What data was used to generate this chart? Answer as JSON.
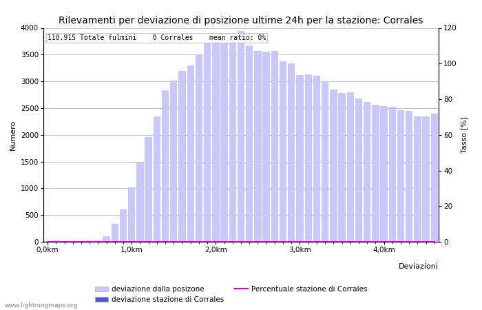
{
  "title": "Rilevamenti per deviazione di posizione ultime 24h per la stazione: Corrales",
  "xlabel": "Deviazioni",
  "ylabel_left": "Numero",
  "ylabel_right": "Tasso [%]",
  "annotation": "110.915 Totale fulmini    0 Corrales    mean ratio: 0%",
  "watermark": "www.lightningmaps.org",
  "bar_values": [
    10,
    20,
    15,
    10,
    15,
    20,
    25,
    100,
    330,
    600,
    1020,
    1480,
    1960,
    2350,
    2840,
    3010,
    3200,
    3300,
    3490,
    3730,
    3730,
    3800,
    3820,
    3940,
    3670,
    3570,
    3560,
    3570,
    3380,
    3340,
    3120,
    3130,
    3100,
    3000,
    2850,
    2780,
    2800,
    2680,
    2610,
    2570,
    2540,
    2520,
    2460,
    2450,
    2350,
    2340,
    2400
  ],
  "station_values": [
    0,
    0,
    0,
    0,
    0,
    0,
    0,
    0,
    0,
    0,
    0,
    0,
    0,
    0,
    0,
    0,
    0,
    0,
    0,
    0,
    0,
    0,
    0,
    0,
    0,
    0,
    0,
    0,
    0,
    0,
    0,
    0,
    0,
    0,
    0,
    0,
    0,
    0,
    0,
    0,
    0,
    0,
    0,
    0,
    0,
    0,
    0
  ],
  "ratio_values": [
    0,
    0,
    0,
    0,
    0,
    0,
    0,
    0,
    0,
    0,
    0,
    0,
    0,
    0,
    0,
    0,
    0,
    0,
    0,
    0,
    0,
    0,
    0,
    0,
    0,
    0,
    0,
    0,
    0,
    0,
    0,
    0,
    0,
    0,
    0,
    0,
    0,
    0,
    0,
    0,
    0,
    0,
    0,
    0,
    0,
    0,
    0
  ],
  "n_bars": 47,
  "x_tick_positions": [
    0,
    10,
    20,
    30,
    40
  ],
  "x_tick_labels": [
    "0,0km",
    "1,0km",
    "2,0km",
    "3,0km",
    "4,0km"
  ],
  "ylim_left": [
    0,
    4000
  ],
  "ylim_right": [
    0,
    120
  ],
  "yticks_left": [
    0,
    500,
    1000,
    1500,
    2000,
    2500,
    3000,
    3500,
    4000
  ],
  "yticks_right": [
    0,
    20,
    40,
    60,
    80,
    100,
    120
  ],
  "bar_color_light": "#c8c8ff",
  "bar_color_dark": "#5555cc",
  "line_color": "#cc00cc",
  "bg_color": "#ffffff",
  "grid_color": "#aaaaaa",
  "title_fontsize": 10,
  "label_fontsize": 8,
  "tick_fontsize": 7.5,
  "annotation_fontsize": 7,
  "legend_fontsize": 7.5,
  "watermark_fontsize": 6.5
}
